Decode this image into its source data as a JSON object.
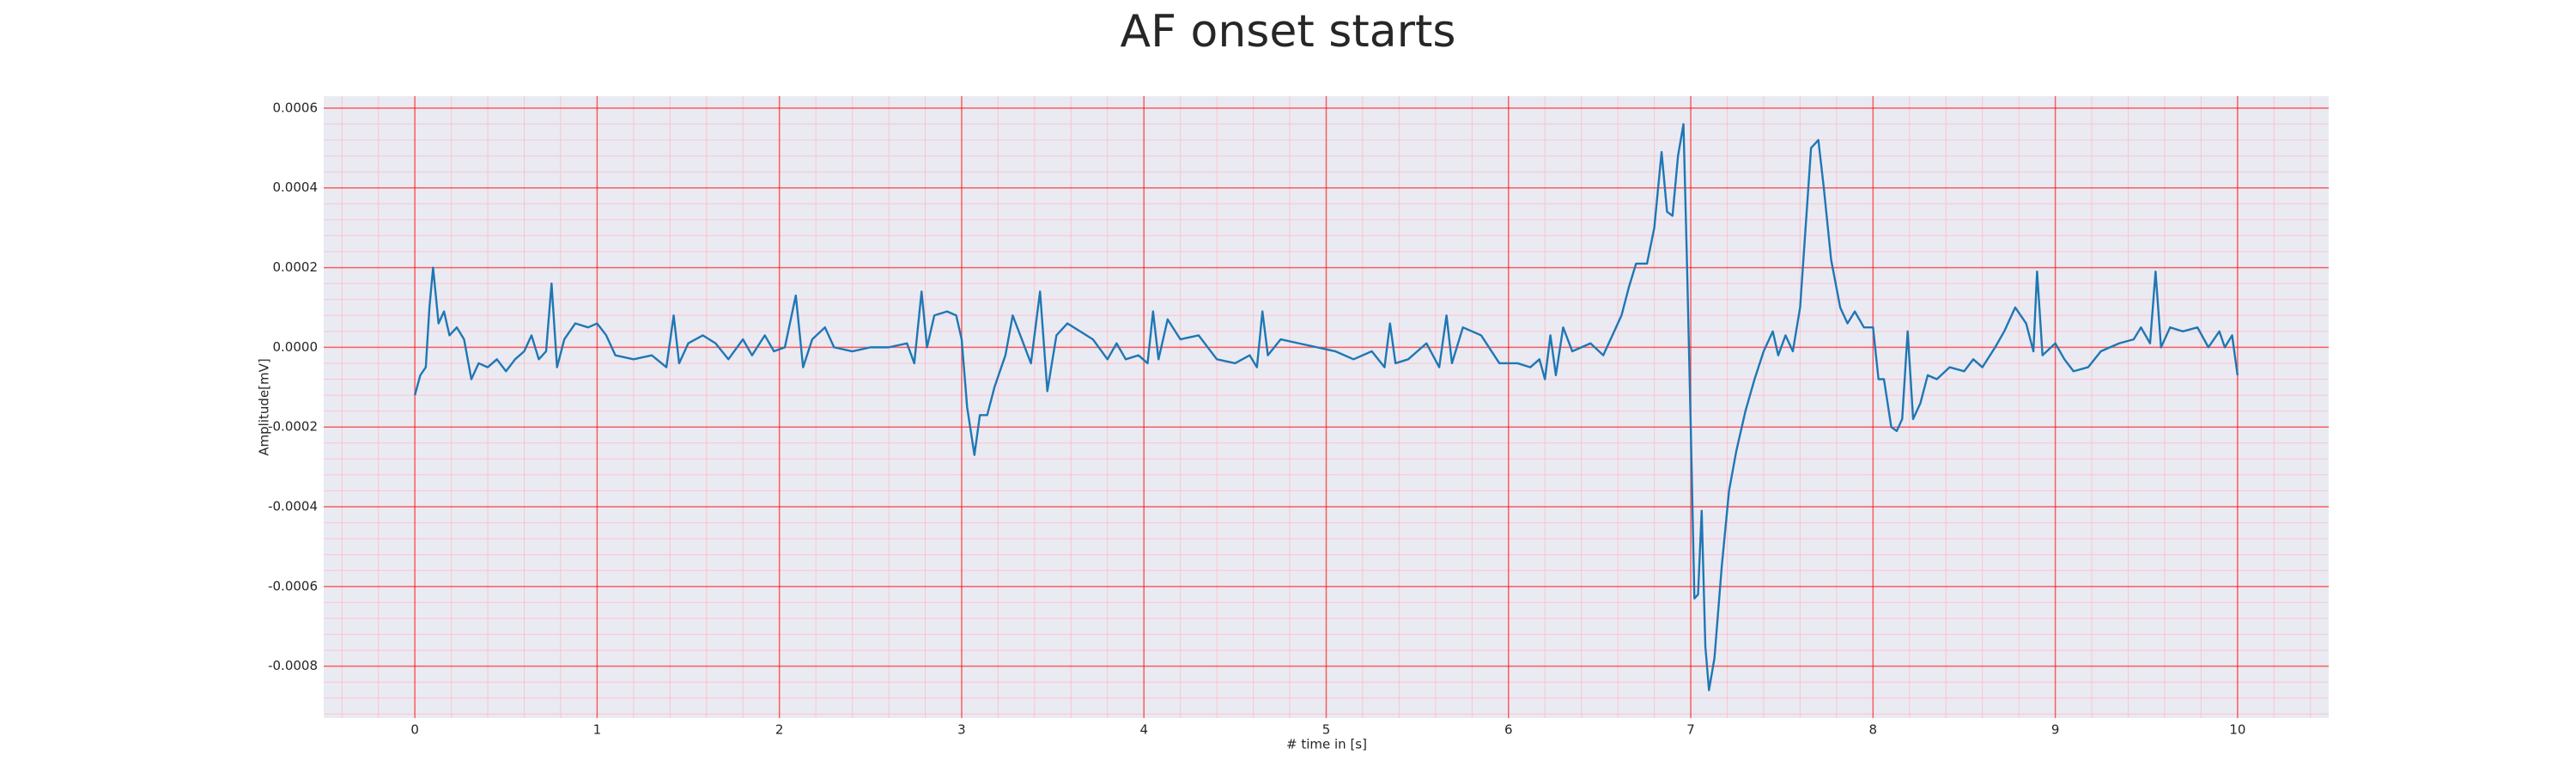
{
  "chart_data": {
    "type": "line",
    "title": "AF onset starts",
    "xlabel": "# time in [s]",
    "ylabel": "Amplitude[mV]",
    "color": "#1f77b4",
    "grid": true,
    "minor_grid": true,
    "minor_divisions": 5,
    "xlim": [
      -0.5,
      10.5
    ],
    "ylim": [
      -0.00093,
      0.00063
    ],
    "xticks": [
      0,
      1,
      2,
      3,
      4,
      5,
      6,
      7,
      8,
      9,
      10
    ],
    "yticks": [
      -0.0008,
      -0.0006,
      -0.0004,
      -0.0002,
      {
        "value": 0,
        "label": "0.0000"
      },
      0.0002,
      0.0004,
      0.0006
    ],
    "x": [
      0.0,
      0.03,
      0.06,
      0.08,
      0.1,
      0.13,
      0.16,
      0.19,
      0.23,
      0.27,
      0.31,
      0.35,
      0.4,
      0.45,
      0.5,
      0.55,
      0.6,
      0.64,
      0.68,
      0.72,
      0.75,
      0.78,
      0.82,
      0.88,
      0.95,
      1.0,
      1.05,
      1.1,
      1.2,
      1.3,
      1.38,
      1.42,
      1.45,
      1.5,
      1.58,
      1.65,
      1.72,
      1.8,
      1.85,
      1.92,
      1.97,
      2.03,
      2.09,
      2.13,
      2.18,
      2.25,
      2.3,
      2.4,
      2.5,
      2.6,
      2.7,
      2.74,
      2.78,
      2.81,
      2.85,
      2.92,
      2.97,
      3.0,
      3.03,
      3.07,
      3.1,
      3.14,
      3.18,
      3.24,
      3.28,
      3.33,
      3.38,
      3.43,
      3.47,
      3.52,
      3.58,
      3.65,
      3.72,
      3.8,
      3.85,
      3.9,
      3.97,
      4.02,
      4.05,
      4.08,
      4.13,
      4.2,
      4.3,
      4.4,
      4.5,
      4.58,
      4.62,
      4.65,
      4.68,
      4.75,
      4.85,
      4.95,
      5.05,
      5.15,
      5.25,
      5.32,
      5.35,
      5.38,
      5.45,
      5.55,
      5.62,
      5.66,
      5.69,
      5.75,
      5.85,
      5.95,
      6.05,
      6.12,
      6.17,
      6.2,
      6.23,
      6.26,
      6.3,
      6.35,
      6.45,
      6.52,
      6.58,
      6.62,
      6.66,
      6.7,
      6.76,
      6.8,
      6.84,
      6.87,
      6.9,
      6.93,
      6.96,
      6.98,
      7.0,
      7.02,
      7.04,
      7.06,
      7.08,
      7.1,
      7.13,
      7.17,
      7.21,
      7.25,
      7.3,
      7.35,
      7.4,
      7.45,
      7.48,
      7.52,
      7.56,
      7.6,
      7.63,
      7.66,
      7.7,
      7.73,
      7.77,
      7.82,
      7.86,
      7.9,
      7.95,
      8.0,
      8.03,
      8.06,
      8.1,
      8.13,
      8.16,
      8.19,
      8.22,
      8.26,
      8.3,
      8.35,
      8.42,
      8.5,
      8.55,
      8.6,
      8.67,
      8.72,
      8.78,
      8.84,
      8.88,
      8.9,
      8.93,
      9.0,
      9.05,
      9.1,
      9.18,
      9.25,
      9.35,
      9.43,
      9.47,
      9.52,
      9.55,
      9.58,
      9.63,
      9.7,
      9.78,
      9.84,
      9.9,
      9.93,
      9.97,
      10.0
    ],
    "values": [
      -0.00012,
      -7e-05,
      -5e-05,
      0.0001,
      0.0002,
      6e-05,
      9e-05,
      3e-05,
      5e-05,
      2e-05,
      -8e-05,
      -4e-05,
      -5e-05,
      -3e-05,
      -6e-05,
      -3e-05,
      -1e-05,
      3e-05,
      -3e-05,
      -1e-05,
      0.00016,
      -5e-05,
      2e-05,
      6e-05,
      5e-05,
      6e-05,
      3e-05,
      -2e-05,
      -3e-05,
      -2e-05,
      -5e-05,
      8e-05,
      -4e-05,
      1e-05,
      3e-05,
      1e-05,
      -3e-05,
      2e-05,
      -2e-05,
      3e-05,
      -1e-05,
      0,
      0.00013,
      -5e-05,
      2e-05,
      5e-05,
      0,
      -1e-05,
      0,
      0,
      1e-05,
      -4e-05,
      0.00014,
      0,
      8e-05,
      9e-05,
      8e-05,
      2e-05,
      -0.00015,
      -0.00027,
      -0.00017,
      -0.00017,
      -0.0001,
      -2e-05,
      8e-05,
      2e-05,
      -4e-05,
      0.00014,
      -0.00011,
      3e-05,
      6e-05,
      4e-05,
      2e-05,
      -3e-05,
      1e-05,
      -3e-05,
      -2e-05,
      -4e-05,
      9e-05,
      -3e-05,
      7e-05,
      2e-05,
      3e-05,
      -3e-05,
      -4e-05,
      -2e-05,
      -5e-05,
      9e-05,
      -2e-05,
      2e-05,
      1e-05,
      0,
      -1e-05,
      -3e-05,
      -1e-05,
      -5e-05,
      6e-05,
      -4e-05,
      -3e-05,
      1e-05,
      -5e-05,
      8e-05,
      -4e-05,
      5e-05,
      3e-05,
      -4e-05,
      -4e-05,
      -5e-05,
      -3e-05,
      -8e-05,
      3e-05,
      -7e-05,
      5e-05,
      -1e-05,
      1e-05,
      -2e-05,
      4e-05,
      8e-05,
      0.00015,
      0.00021,
      0.00021,
      0.0003,
      0.00049,
      0.00034,
      0.00033,
      0.00048,
      0.00056,
      0.0002,
      -0.0002,
      -0.00063,
      -0.00062,
      -0.00041,
      -0.00075,
      -0.00086,
      -0.00078,
      -0.00055,
      -0.00036,
      -0.00026,
      -0.00016,
      -8e-05,
      -1e-05,
      4e-05,
      -2e-05,
      3e-05,
      -1e-05,
      0.0001,
      0.0003,
      0.0005,
      0.00052,
      0.0004,
      0.00022,
      0.0001,
      6e-05,
      9e-05,
      5e-05,
      5e-05,
      -8e-05,
      -8e-05,
      -0.0002,
      -0.00021,
      -0.00018,
      4e-05,
      -0.00018,
      -0.00014,
      -7e-05,
      -8e-05,
      -5e-05,
      -6e-05,
      -3e-05,
      -5e-05,
      0,
      4e-05,
      0.0001,
      6e-05,
      -1e-05,
      0.00019,
      -2e-05,
      1e-05,
      -3e-05,
      -6e-05,
      -5e-05,
      -1e-05,
      1e-05,
      2e-05,
      5e-05,
      1e-05,
      0.00019,
      0,
      5e-05,
      4e-05,
      5e-05,
      0,
      4e-05,
      0,
      3e-05,
      -7e-05
    ]
  }
}
